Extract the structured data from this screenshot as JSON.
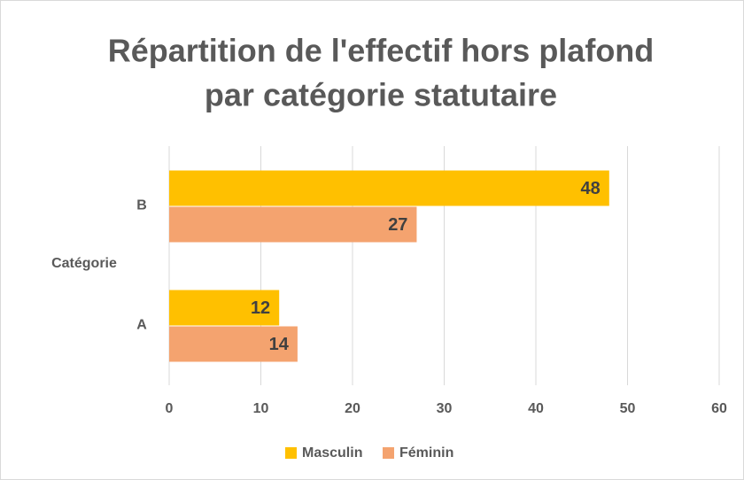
{
  "chart_data": {
    "type": "hbar",
    "title": "Répartition de l'effectif hors plafond",
    "title_line2": "par catégorie statutaire",
    "y_label": "Catégorie",
    "categories": [
      "A",
      "B"
    ],
    "series": [
      {
        "name": "Masculin",
        "color": "#ffc000",
        "values": [
          12,
          48
        ]
      },
      {
        "name": "Féminin",
        "color": "#f4a36f",
        "values": [
          14,
          27
        ]
      }
    ],
    "xlim": [
      0,
      60
    ],
    "xticks": [
      0,
      10,
      20,
      30,
      40,
      50,
      60
    ],
    "grid": true,
    "legend": "bottom"
  }
}
